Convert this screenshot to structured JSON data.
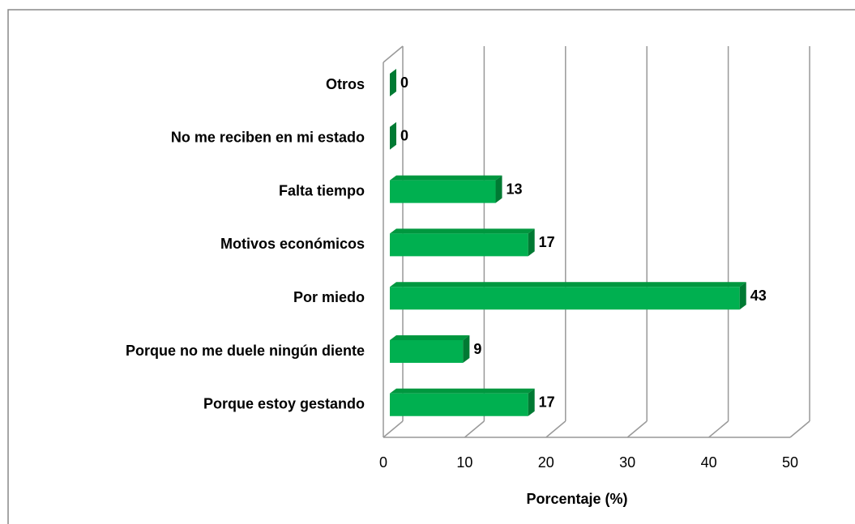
{
  "chart_data": {
    "type": "bar3d_horizontal",
    "categories": [
      "Otros",
      "No me reciben en mi estado",
      "Falta tiempo",
      "Motivos económicos",
      "Por miedo",
      "Porque no me duele ningún diente",
      "Porque estoy gestando"
    ],
    "values": [
      0,
      0,
      13,
      17,
      43,
      9,
      17
    ],
    "color": "#00b050",
    "xlim": [
      0,
      50
    ],
    "xticks": [
      0,
      10,
      20,
      30,
      40,
      50
    ],
    "x_label": "Porcentaje (%)",
    "grid": true
  }
}
